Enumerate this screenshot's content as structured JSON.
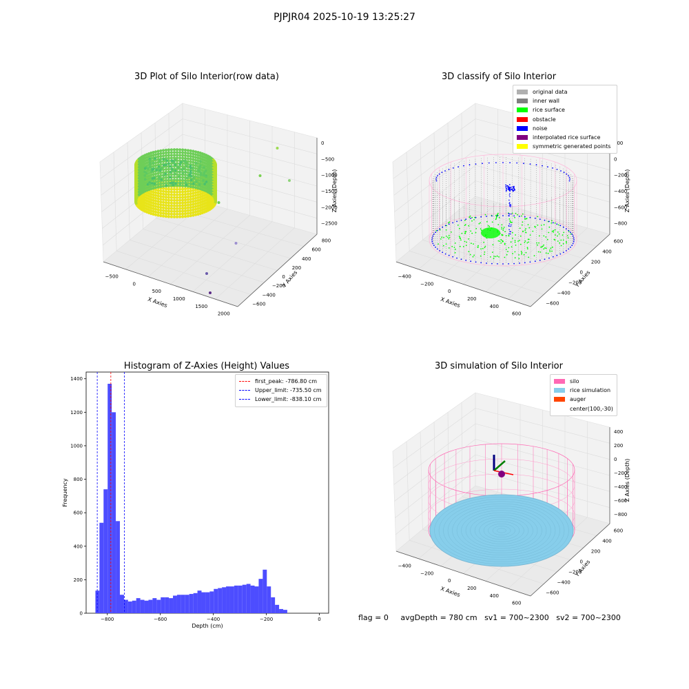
{
  "figure": {
    "suptitle": "PJPJR04 2025-10-19 13:25:27",
    "footer": {
      "flag": "flag = 0",
      "avg_depth": "avgDepth = 780 cm",
      "sv1": "sv1 = 700~2300",
      "sv2": "sv2 = 700~2300"
    }
  },
  "chart_data": [
    {
      "type": "scatter",
      "panel": "top-left",
      "title": "3D Plot of Silo Interior(row data)",
      "xlabel": "X Axies",
      "ylabel": "Y Axies",
      "zlabel": "Z Axies (Depth)",
      "x_ticks": [
        "−500",
        "0",
        "500",
        "1000",
        "1500",
        "2000"
      ],
      "y_ticks": [
        "−600",
        "−400",
        "−200",
        "0",
        "200",
        "400",
        "600",
        "800"
      ],
      "z_ticks": [
        "0",
        "−500",
        "−1000",
        "−1500",
        "−2000",
        "−2500"
      ],
      "colormap": "viridis",
      "outlier_points": [
        {
          "x": 1600,
          "y": 700,
          "z": -500,
          "color": "#9ddb53"
        },
        {
          "x": 1400,
          "y": 500,
          "z": -1000,
          "color": "#7ad151"
        },
        {
          "x": 1900,
          "y": 600,
          "z": -1200,
          "color": "#8fd37a"
        },
        {
          "x": 800,
          "y": 200,
          "z": -1400,
          "color": "#6ccd5a"
        },
        {
          "x": 1200,
          "y": 100,
          "z": -2300,
          "color": "#9c8fd0"
        },
        {
          "x": 900,
          "y": -300,
          "z": -2700,
          "color": "#6a5aab"
        },
        {
          "x": 1100,
          "y": -500,
          "z": -3000,
          "color": "#5b2a86"
        }
      ]
    },
    {
      "type": "scatter",
      "panel": "top-right",
      "title": "3D classify of Silo Interior",
      "xlabel": "X Axies",
      "ylabel": "Y Axies",
      "zlabel": "Z Axies (Depth)",
      "x_ticks": [
        "−400",
        "−200",
        "0",
        "200",
        "400",
        "600"
      ],
      "y_ticks": [
        "−600",
        "−400",
        "−200",
        "0",
        "200",
        "400",
        "600"
      ],
      "z_ticks": [
        "200",
        "0",
        "−200",
        "−400",
        "−600",
        "−800"
      ],
      "legend_position": "top-right",
      "legend": [
        {
          "label": "original data",
          "color": "#b0b0b0"
        },
        {
          "label": "inner wall",
          "color": "#808080"
        },
        {
          "label": "rice surface",
          "color": "#00ff00"
        },
        {
          "label": "obstacle",
          "color": "#ff0000"
        },
        {
          "label": "noise",
          "color": "#0000ff"
        },
        {
          "label": "interpolated rice surface",
          "color": "#800080"
        },
        {
          "label": "symmetric generated points",
          "color": "#ffff00"
        }
      ]
    },
    {
      "type": "bar",
      "panel": "bottom-left",
      "title": "Histogram of Z-Axies (Height) Values",
      "xlabel": "Depth (cm)",
      "ylabel": "Frequency",
      "xlim": [
        -880,
        35
      ],
      "ylim": [
        0,
        1440
      ],
      "x_ticks": [
        {
          "value": -800,
          "label": "−800"
        },
        {
          "value": -600,
          "label": "−600"
        },
        {
          "value": -400,
          "label": "−400"
        },
        {
          "value": -200,
          "label": "−200"
        },
        {
          "value": 0,
          "label": "0"
        }
      ],
      "y_ticks": [
        0,
        200,
        400,
        600,
        800,
        1000,
        1200,
        1400
      ],
      "bar_color": "#4d4dff",
      "bin_start": -845,
      "bin_width": 15.4,
      "values": [
        135,
        540,
        740,
        1370,
        1200,
        550,
        110,
        80,
        70,
        75,
        90,
        80,
        75,
        80,
        90,
        80,
        95,
        95,
        90,
        105,
        110,
        110,
        110,
        115,
        120,
        135,
        125,
        125,
        130,
        145,
        150,
        155,
        160,
        160,
        165,
        165,
        170,
        175,
        165,
        160,
        205,
        260,
        160,
        95,
        50,
        25,
        20
      ],
      "vlines": [
        {
          "label": "first_peak: -786.80 cm",
          "x": -786.8,
          "color": "#ff0000"
        },
        {
          "label": "Upper_limit: -735.50 cm",
          "x": -735.5,
          "color": "#0000ff"
        },
        {
          "label": "Lower_limit: -838.10 cm",
          "x": -838.1,
          "color": "#0000ff"
        }
      ],
      "legend_position": "top-right"
    },
    {
      "type": "scatter",
      "panel": "bottom-right",
      "title": "3D simulation of Silo Interior",
      "xlabel": "X Axies",
      "ylabel": "Y Axies",
      "zlabel": "Z Axies (Depth)",
      "x_ticks": [
        "−400",
        "−200",
        "0",
        "200",
        "400",
        "600"
      ],
      "y_ticks": [
        "−600",
        "−400",
        "−200",
        "0",
        "200",
        "400",
        "600"
      ],
      "z_ticks": [
        "400",
        "200",
        "0",
        "−200",
        "−400",
        "−600",
        "−800"
      ],
      "legend_position": "top-right",
      "legend": [
        {
          "label": "silo",
          "color": "#ff69b4"
        },
        {
          "label": "rice simulation",
          "color": "#87ceeb"
        },
        {
          "label": "auger",
          "color": "#ff4500"
        },
        {
          "label": "center(100,-30)",
          "color": ""
        }
      ]
    }
  ]
}
